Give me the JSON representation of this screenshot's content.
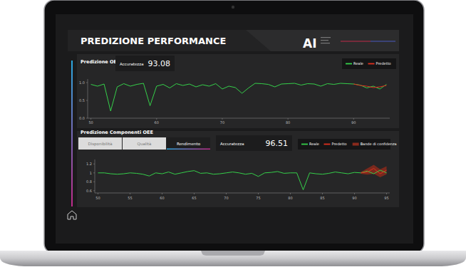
{
  "page": {
    "title": "PREDIZIONE PERFORMANCE",
    "logo": "AI"
  },
  "chart_data": [
    {
      "type": "line",
      "title": "Predizione OEE",
      "accuracy": {
        "label": "Accuratezza",
        "value": 93.08
      },
      "x": [
        50,
        51,
        52,
        53,
        54,
        55,
        56,
        57,
        58,
        59,
        60,
        61,
        62,
        63,
        64,
        65,
        66,
        67,
        68,
        69,
        70,
        71,
        72,
        73,
        74,
        75,
        76,
        77,
        78,
        79,
        80,
        81,
        82,
        83,
        84,
        85,
        86,
        87,
        88,
        89,
        90,
        91,
        92,
        93,
        94,
        95
      ],
      "xlim": [
        49.5,
        95.5
      ],
      "xticks": [
        50,
        60,
        70,
        80,
        90
      ],
      "ylim": [
        0,
        1.1
      ],
      "yticks": [
        {
          "value": 0,
          "label": "0.0"
        },
        {
          "value": 0.5,
          "label": "0.5"
        },
        {
          "value": 1,
          "label": "1.0"
        }
      ],
      "legend": "upper right",
      "series": [
        {
          "name": "Reale",
          "color": "#35d04a",
          "values": [
            0.95,
            0.9,
            0.96,
            0.2,
            0.88,
            0.97,
            0.9,
            0.95,
            0.98,
            0.35,
            0.9,
            0.95,
            0.85,
            0.97,
            0.92,
            0.96,
            0.88,
            0.94,
            0.9,
            0.97,
            0.82,
            0.9,
            0.86,
            0.7,
            0.85,
            0.98,
            0.97,
            0.95,
            0.88,
            0.96,
            0.97,
            0.98,
            0.93,
            0.97,
            0.96,
            0.9,
            0.97,
            0.95,
            0.98,
            0.97,
            0.96,
            0.93,
            0.85,
            0.9,
            0.82,
            0.95
          ]
        },
        {
          "name": "Predetto",
          "color": "#e0301e",
          "values": [
            null,
            null,
            null,
            null,
            null,
            null,
            null,
            null,
            null,
            null,
            null,
            null,
            null,
            null,
            null,
            null,
            null,
            null,
            null,
            null,
            null,
            null,
            null,
            null,
            null,
            null,
            null,
            null,
            null,
            null,
            null,
            null,
            null,
            null,
            null,
            null,
            null,
            null,
            null,
            null,
            0.96,
            0.92,
            0.9,
            0.86,
            0.88,
            0.92
          ]
        }
      ]
    },
    {
      "type": "line",
      "title": "Predizione Componenti OEE",
      "tabs": [
        "Disponibilità",
        "Qualità",
        "Rendimento"
      ],
      "accuracy": {
        "label": "Accuratezza",
        "value": 96.51
      },
      "x": [
        50,
        51,
        52,
        53,
        54,
        55,
        56,
        57,
        58,
        59,
        60,
        61,
        62,
        63,
        64,
        65,
        66,
        67,
        68,
        69,
        70,
        71,
        72,
        73,
        74,
        75,
        76,
        77,
        78,
        79,
        80,
        81,
        82,
        83,
        84,
        85,
        86,
        87,
        88,
        89,
        90,
        91,
        92,
        93,
        94,
        95
      ],
      "xlim": [
        49.5,
        95.5
      ],
      "xticks": [
        50,
        55,
        60,
        65,
        70,
        75,
        80,
        85,
        90,
        95
      ],
      "ylim": [
        0.55,
        1.3
      ],
      "yticks": [
        0.6,
        0.8,
        1,
        1.2
      ],
      "legend": "upper right",
      "series": [
        {
          "name": "Reale",
          "color": "#35d04a",
          "values": [
            1.0,
            1.0,
            0.98,
            0.97,
            0.98,
            1.0,
            0.99,
            0.97,
            0.93,
            1.0,
            0.98,
            1.02,
            0.97,
            1.0,
            1.03,
            1.05,
            0.99,
            1.0,
            0.97,
            0.98,
            1.0,
            1.02,
            1.0,
            0.97,
            0.99,
            0.92,
            1.0,
            1.01,
            1.03,
            0.99,
            1.0,
            1.0,
            0.62,
            1.0,
            0.98,
            0.97,
            0.99,
            1.02,
            1.0,
            0.98,
            1.01,
            1.0,
            1.04,
            0.98,
            1.06,
            1.0
          ]
        },
        {
          "name": "Predetto",
          "color": "#e0301e",
          "values": [
            null,
            null,
            null,
            null,
            null,
            null,
            null,
            null,
            null,
            null,
            null,
            null,
            null,
            null,
            null,
            null,
            null,
            null,
            null,
            null,
            null,
            null,
            null,
            null,
            null,
            null,
            null,
            null,
            null,
            null,
            null,
            null,
            null,
            null,
            null,
            null,
            null,
            null,
            null,
            null,
            null,
            1.0,
            1.02,
            1.1,
            0.98,
            1.06
          ]
        },
        {
          "name": "Bande di confidenza",
          "type": "area",
          "color": "#8a2a1c",
          "lower": [
            null,
            null,
            null,
            null,
            null,
            null,
            null,
            null,
            null,
            null,
            null,
            null,
            null,
            null,
            null,
            null,
            null,
            null,
            null,
            null,
            null,
            null,
            null,
            null,
            null,
            null,
            null,
            null,
            null,
            null,
            null,
            null,
            null,
            null,
            null,
            null,
            null,
            null,
            null,
            null,
            null,
            0.98,
            0.96,
            0.98,
            0.9,
            0.97
          ],
          "upper": [
            null,
            null,
            null,
            null,
            null,
            null,
            null,
            null,
            null,
            null,
            null,
            null,
            null,
            null,
            null,
            null,
            null,
            null,
            null,
            null,
            null,
            null,
            null,
            null,
            null,
            null,
            null,
            null,
            null,
            null,
            null,
            null,
            null,
            null,
            null,
            null,
            null,
            null,
            null,
            null,
            null,
            1.02,
            1.1,
            1.18,
            1.08,
            1.15
          ]
        }
      ]
    }
  ]
}
